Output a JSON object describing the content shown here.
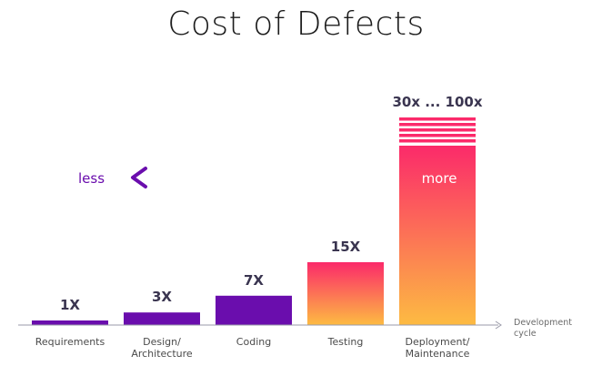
{
  "chart_data": {
    "type": "bar",
    "title": "Cost of Defects",
    "categories": [
      "Requirements",
      "Design/\nArchitecture",
      "Coding",
      "Testing",
      "Deployment/\nMaintenance"
    ],
    "values": [
      1,
      3,
      7,
      15,
      30
    ],
    "value_labels": [
      "1X",
      "3X",
      "7X",
      "15X",
      "30x ... 100x"
    ],
    "xlabel": "Development\ncycle",
    "arrow": {
      "left_label": "less",
      "right_label": "more"
    },
    "colors": {
      "purple": "#6a0dad",
      "gradient_top": "#fb2a6a",
      "gradient_bottom": "#fdbb42",
      "label": "#3a3550",
      "axis": "#9a9aa8"
    }
  }
}
